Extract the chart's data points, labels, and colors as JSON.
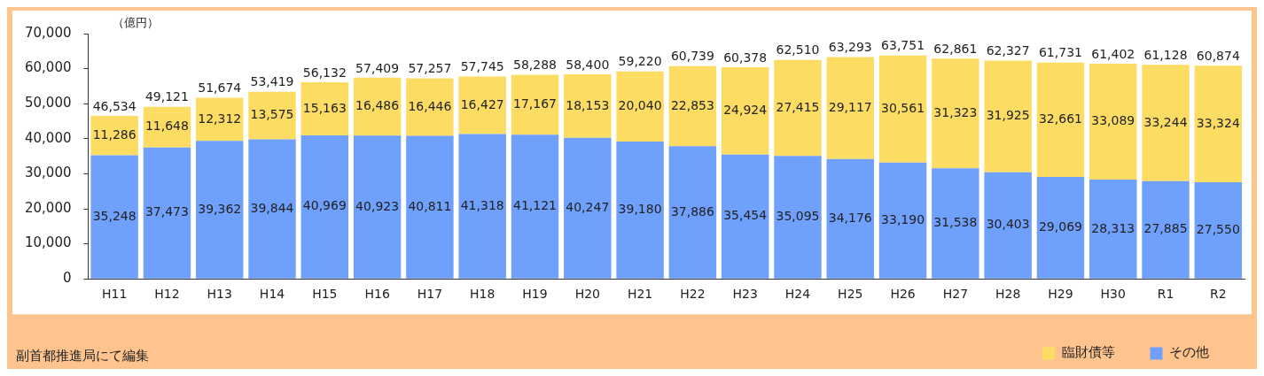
{
  "chart_data": {
    "type": "bar",
    "stacked": true,
    "ylabel": "（億円）",
    "categories": [
      "H11",
      "H12",
      "H13",
      "H14",
      "H15",
      "H16",
      "H17",
      "H18",
      "H19",
      "H20",
      "H21",
      "H22",
      "H23",
      "H24",
      "H25",
      "H26",
      "H27",
      "H28",
      "H29",
      "H30",
      "R1",
      "R2"
    ],
    "series": [
      {
        "name": "その他",
        "color": "#6fa0fc",
        "values": [
          35248,
          37473,
          39362,
          39844,
          40969,
          40923,
          40811,
          41318,
          41121,
          40247,
          39180,
          37886,
          35454,
          35095,
          34176,
          33190,
          31538,
          30403,
          29069,
          28313,
          27885,
          27550
        ],
        "value_labels": [
          "35,248",
          "37,473",
          "39,362",
          "39,844",
          "40,969",
          "40,923",
          "40,811",
          "41,318",
          "41,121",
          "40,247",
          "39,180",
          "37,886",
          "35,454",
          "35,095",
          "34,176",
          "33,190",
          "31,538",
          "30,403",
          "29,069",
          "28,313",
          "27,885",
          "27,550"
        ]
      },
      {
        "name": "臨財債等",
        "color": "#fddc64",
        "values": [
          11286,
          11648,
          12312,
          13575,
          15163,
          16486,
          16446,
          16427,
          17167,
          18153,
          20040,
          22853,
          24924,
          27415,
          29117,
          30561,
          31323,
          31925,
          32661,
          33089,
          33244,
          33324
        ],
        "value_labels": [
          "11,286",
          "11,648",
          "12,312",
          "13,575",
          "15,163",
          "16,486",
          "16,446",
          "16,427",
          "17,167",
          "18,153",
          "20,040",
          "22,853",
          "24,924",
          "27,415",
          "29,117",
          "30,561",
          "31,323",
          "31,925",
          "32,661",
          "33,089",
          "33,244",
          "33,324"
        ]
      }
    ],
    "totals": [
      "46,534",
      "49,121",
      "51,674",
      "53,419",
      "56,132",
      "57,409",
      "57,257",
      "57,745",
      "58,288",
      "58,400",
      "59,220",
      "60,739",
      "60,378",
      "62,510",
      "63,293",
      "63,751",
      "62,861",
      "62,327",
      "61,731",
      "61,402",
      "61,128",
      "60,874"
    ],
    "ylim": [
      0,
      70000
    ],
    "yticks": [
      {
        "value": 0,
        "label": "0"
      },
      {
        "value": 10000,
        "label": "10,000"
      },
      {
        "value": 20000,
        "label": "20,000"
      },
      {
        "value": 30000,
        "label": "30,000"
      },
      {
        "value": 40000,
        "label": "40,000"
      },
      {
        "value": 50000,
        "label": "50,000"
      },
      {
        "value": 60000,
        "label": "60,000"
      },
      {
        "value": 70000,
        "label": "70,000"
      }
    ],
    "legend": "bottom right",
    "annotations": [
      "副首都推進局にて編集"
    ]
  }
}
